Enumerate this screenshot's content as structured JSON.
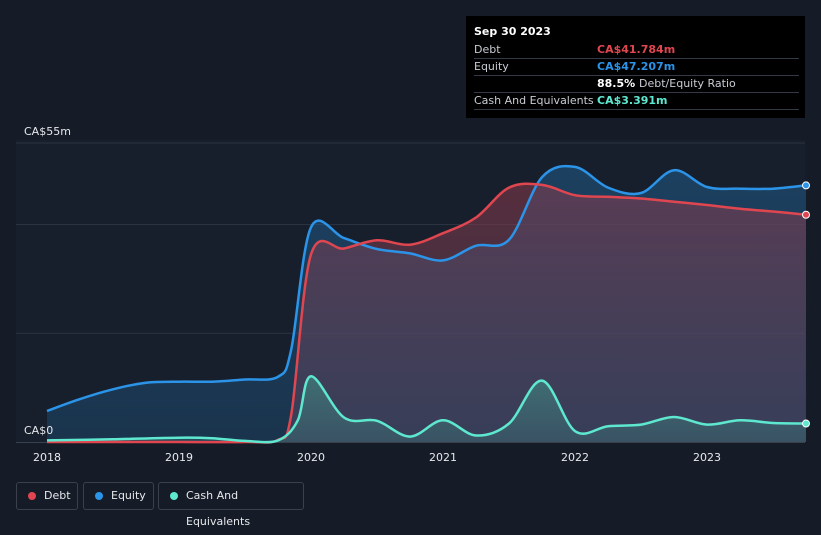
{
  "tooltip": {
    "date": "Sep 30 2023",
    "rows": [
      {
        "label": "Debt",
        "value": "CA$41.784m",
        "color": "#e0464f"
      },
      {
        "label": "Equity",
        "value": "CA$47.207m",
        "color": "#2b94e8"
      },
      {
        "label": "",
        "value": "88.5%",
        "suffix": "Debt/Equity Ratio",
        "color": "#ffffff"
      },
      {
        "label": "Cash And Equivalents",
        "value": "CA$3.391m",
        "color": "#5ee8d0"
      }
    ]
  },
  "legend": [
    {
      "label": "Debt",
      "color": "#e0464f"
    },
    {
      "label": "Equity",
      "color": "#2b94e8"
    },
    {
      "label": "Cash And Equivalents",
      "color": "#5ee8d0"
    }
  ],
  "chart_data": {
    "type": "area",
    "title": "",
    "xlabel": "",
    "ylabel": "",
    "ylim": [
      0,
      55
    ],
    "xlim": [
      2018,
      2023.75
    ],
    "y_tick_labels": [
      "CA$55m",
      "CA$0"
    ],
    "x_tick_labels": [
      "2018",
      "2019",
      "2020",
      "2021",
      "2022",
      "2023"
    ],
    "x_ticks": [
      2018,
      2019,
      2020,
      2021,
      2022,
      2023
    ],
    "series": [
      {
        "name": "Equity",
        "color": "#2b94e8",
        "x": [
          2018.0,
          2018.25,
          2018.5,
          2018.75,
          2019.0,
          2019.25,
          2019.5,
          2019.75,
          2019.85,
          2020.0,
          2020.25,
          2020.5,
          2020.75,
          2021.0,
          2021.25,
          2021.5,
          2021.75,
          2022.0,
          2022.25,
          2022.5,
          2022.75,
          2023.0,
          2023.25,
          2023.5,
          2023.75
        ],
        "y": [
          5.7,
          7.9,
          9.7,
          10.9,
          11.1,
          11.1,
          11.5,
          12.0,
          17,
          39.5,
          37.5,
          35.5,
          34.7,
          33.4,
          36.1,
          37.2,
          48.7,
          50.6,
          46.8,
          45.8,
          50.0,
          46.9,
          46.6,
          46.6,
          47.2
        ]
      },
      {
        "name": "Debt",
        "color": "#e0464f",
        "x": [
          2018.0,
          2018.5,
          2019.0,
          2019.5,
          2019.75,
          2019.85,
          2020.0,
          2020.25,
          2020.5,
          2020.75,
          2021.0,
          2021.25,
          2021.5,
          2021.75,
          2022.0,
          2022.25,
          2022.5,
          2022.75,
          2023.0,
          2023.25,
          2023.5,
          2023.75
        ],
        "y": [
          0,
          0,
          0,
          0,
          0.4,
          5,
          34.5,
          35.6,
          37.1,
          36.3,
          38.4,
          41.3,
          46.8,
          47.3,
          45.4,
          45.1,
          44.8,
          44.2,
          43.6,
          42.9,
          42.4,
          41.8
        ]
      },
      {
        "name": "Cash And Equivalents",
        "color": "#5ee8d0",
        "x": [
          2018.0,
          2018.5,
          2019.0,
          2019.25,
          2019.5,
          2019.75,
          2019.9,
          2020.0,
          2020.25,
          2020.5,
          2020.75,
          2021.0,
          2021.25,
          2021.5,
          2021.75,
          2022.0,
          2022.25,
          2022.5,
          2022.75,
          2023.0,
          2023.25,
          2023.5,
          2023.75
        ],
        "y": [
          0.3,
          0.5,
          0.8,
          0.7,
          0.2,
          0.3,
          4,
          12.1,
          4.5,
          3.9,
          1.0,
          4.0,
          1.2,
          3.4,
          11.3,
          2.0,
          2.9,
          3.2,
          4.6,
          3.2,
          4.0,
          3.5,
          3.4
        ]
      }
    ]
  }
}
